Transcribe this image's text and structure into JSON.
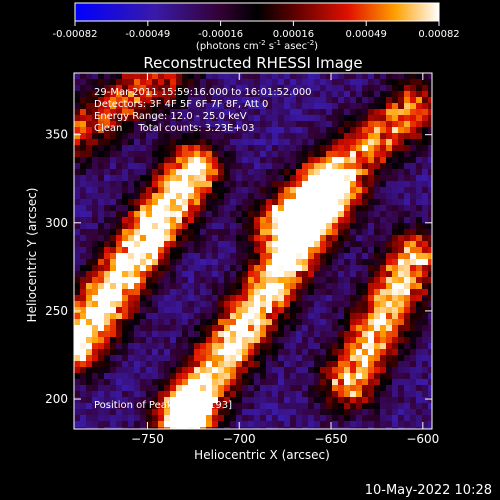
{
  "chart_data": {
    "type": "heatmap",
    "title": "Reconstructed RHESSI Image",
    "xlabel": "Heliocentric X (arcsec)",
    "ylabel": "Heliocentric Y (arcsec)",
    "xlim": [
      -790,
      -595
    ],
    "ylim": [
      183,
      385
    ],
    "x_ticks": [
      -750,
      -700,
      -650,
      -600
    ],
    "y_ticks": [
      200,
      250,
      300,
      350
    ],
    "colorbar": {
      "ticks": [
        "-0.00082",
        "-0.00049",
        "-0.00016",
        "0.00016",
        "0.00049",
        "0.00082"
      ],
      "range": [
        -0.00082,
        0.00082
      ],
      "label_main": "(photons cm",
      "label_exp1": "-2",
      "label_mid": " s",
      "label_exp2": "-1",
      "label_mid2": " asec",
      "label_exp3": "-2",
      "label_end": ")"
    },
    "annotations": [
      "29-Mar-2011 15:59:16.000 to 16:01:52.000",
      "Detectors: 3F 4F 5F 6F 7F 8F, Att 0",
      "Energy Range: 12.0 - 25.0 keV",
      "Clean     Total counts: 3.23E+03"
    ],
    "peak_label": "Position of Peak: [-728,193]",
    "peak": {
      "x": -728,
      "y": 193
    },
    "bright_bands": [
      {
        "x0": -790,
        "y0": 230,
        "x1": -725,
        "y1": 330,
        "strength": 0.85
      },
      {
        "x0": -730,
        "y0": 190,
        "x1": -650,
        "y1": 315,
        "strength": 0.8
      },
      {
        "x0": -680,
        "y0": 300,
        "x1": -605,
        "y1": 365,
        "strength": 0.6
      },
      {
        "x0": -640,
        "y0": 210,
        "x1": -605,
        "y1": 280,
        "strength": 0.7
      },
      {
        "x0": -790,
        "y0": 350,
        "x1": -740,
        "y1": 385,
        "strength": 0.5
      }
    ]
  },
  "timestamp": "10-May-2022 10:28"
}
